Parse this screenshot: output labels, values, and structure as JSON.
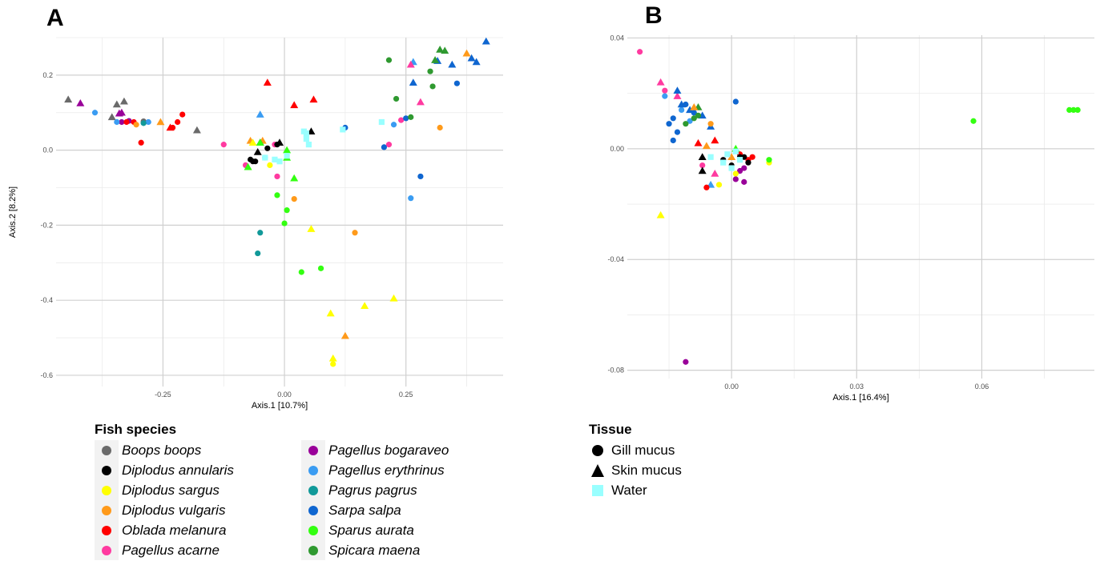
{
  "panels": [
    {
      "letter": "A",
      "xlabel": "Axis.1   [10.7%]",
      "ylabel": "Axis.2   [8.2%]",
      "xlim": [
        -0.47,
        0.45
      ],
      "ylim": [
        -0.63,
        0.3
      ],
      "xticks": [
        -0.25,
        0.0,
        0.25
      ],
      "yticks": [
        -0.6,
        -0.4,
        -0.2,
        0.0,
        0.2
      ],
      "xtick_labels": [
        "-0.25",
        "0.00",
        "0.25"
      ],
      "ytick_labels": [
        "-0.6",
        "-0.4",
        "-0.2",
        "0.0",
        "0.2"
      ]
    },
    {
      "letter": "B",
      "xlabel": "Axis.1   [16.4%]",
      "ylabel": "",
      "xlim": [
        -0.025,
        0.087
      ],
      "ylim": [
        -0.083,
        0.041
      ],
      "xticks": [
        0.0,
        0.03,
        0.06
      ],
      "yticks": [
        -0.08,
        -0.04,
        0.0,
        0.04
      ],
      "xtick_labels": [
        "0.00",
        "0.03",
        "0.06"
      ],
      "ytick_labels": [
        "-0.08",
        "-0.04",
        "0.00",
        "0.04"
      ]
    }
  ],
  "legend_species": {
    "title": "Fish species",
    "columns": [
      [
        {
          "label": "Boops boops",
          "color": "#6a6a6a"
        },
        {
          "label": "Diplodus annularis",
          "color": "#000000"
        },
        {
          "label": "Diplodus sargus",
          "color": "#ffff00"
        },
        {
          "label": "Diplodus vulgaris",
          "color": "#ff9a1a"
        },
        {
          "label": "Oblada melanura",
          "color": "#ff0000"
        },
        {
          "label": "Pagellus acarne",
          "color": "#ff3aa0"
        }
      ],
      [
        {
          "label": "Pagellus bogaraveo",
          "color": "#990099"
        },
        {
          "label": "Pagellus erythrinus",
          "color": "#3a9cf2"
        },
        {
          "label": "Pagrus pagrus",
          "color": "#119999"
        },
        {
          "label": "Sarpa salpa",
          "color": "#0f66d0"
        },
        {
          "label": "Sparus aurata",
          "color": "#33ff11"
        },
        {
          "label": "Spicara maena",
          "color": "#2f9930"
        }
      ]
    ]
  },
  "legend_tissue": {
    "title": "Tissue",
    "items": [
      {
        "label": "Gill mucus",
        "shape": "circle"
      },
      {
        "label": "Skin mucus",
        "shape": "triangle"
      },
      {
        "label": "Water",
        "shape": "square"
      }
    ]
  },
  "chart_data": [
    {
      "type": "scatter",
      "title": "A",
      "xlabel": "Axis.1   [10.7%]",
      "ylabel": "Axis.2   [8.2%]",
      "xlim": [
        -0.47,
        0.45
      ],
      "ylim": [
        -0.63,
        0.3
      ],
      "grid": true,
      "points": [
        [
          "BB",
          "s",
          -0.445,
          0.135
        ],
        [
          "BB",
          "s",
          -0.345,
          0.122
        ],
        [
          "BB",
          "s",
          -0.33,
          0.13
        ],
        [
          "BB",
          "s",
          -0.355,
          0.088
        ],
        [
          "BB",
          "g",
          -0.29,
          0.073
        ],
        [
          "BB",
          "s",
          -0.18,
          0.053
        ],
        [
          "BB",
          "g",
          -0.29,
          0.077
        ],
        [
          "PB",
          "s",
          -0.42,
          0.125
        ],
        [
          "PB",
          "s",
          -0.335,
          0.1
        ],
        [
          "PB",
          "s",
          -0.34,
          0.098
        ],
        [
          "PB",
          "g",
          -0.32,
          0.078
        ],
        [
          "PB",
          "g",
          -0.335,
          0.075
        ],
        [
          "PE",
          "g",
          -0.39,
          0.1
        ],
        [
          "PE",
          "g",
          -0.345,
          0.075
        ],
        [
          "PE",
          "g",
          -0.28,
          0.075
        ],
        [
          "PE",
          "s",
          -0.05,
          0.095
        ],
        [
          "PE",
          "s",
          0.265,
          0.235
        ],
        [
          "PE",
          "g",
          0.225,
          0.068
        ],
        [
          "PE",
          "g",
          0.26,
          -0.128
        ],
        [
          "PE",
          "g",
          -0.04,
          -0.02
        ],
        [
          "OM",
          "g",
          -0.325,
          0.075
        ],
        [
          "OM",
          "g",
          -0.31,
          0.075
        ],
        [
          "OM",
          "g",
          -0.295,
          0.02
        ],
        [
          "OM",
          "g",
          -0.23,
          0.06
        ],
        [
          "OM",
          "g",
          -0.22,
          0.075
        ],
        [
          "OM",
          "g",
          -0.21,
          0.095
        ],
        [
          "OM",
          "s",
          -0.235,
          0.06
        ],
        [
          "OM",
          "s",
          -0.035,
          0.18
        ],
        [
          "OM",
          "s",
          0.02,
          0.12
        ],
        [
          "OM",
          "s",
          0.06,
          0.135
        ],
        [
          "DV",
          "g",
          -0.305,
          0.068
        ],
        [
          "DV",
          "s",
          -0.255,
          0.075
        ],
        [
          "DV",
          "s",
          -0.07,
          0.025
        ],
        [
          "DV",
          "s",
          -0.045,
          0.025
        ],
        [
          "DV",
          "g",
          0.02,
          -0.13
        ],
        [
          "DV",
          "g",
          0.145,
          -0.22
        ],
        [
          "DV",
          "s",
          0.125,
          -0.495
        ],
        [
          "DV",
          "s",
          0.375,
          0.258
        ],
        [
          "DV",
          "g",
          0.32,
          0.06
        ],
        [
          "PP",
          "g",
          -0.05,
          -0.22
        ],
        [
          "PP",
          "g",
          -0.055,
          -0.275
        ],
        [
          "PP",
          "g",
          -0.29,
          0.072
        ],
        [
          "PA",
          "g",
          -0.125,
          0.015
        ],
        [
          "PA",
          "g",
          -0.08,
          -0.04
        ],
        [
          "PA",
          "g",
          -0.015,
          -0.07
        ],
        [
          "PA",
          "g",
          0.215,
          0.015
        ],
        [
          "PA",
          "g",
          0.24,
          0.08
        ],
        [
          "PA",
          "s",
          0.26,
          0.228
        ],
        [
          "PA",
          "s",
          0.28,
          0.128
        ],
        [
          "PA",
          "g",
          -0.02,
          0.015
        ],
        [
          "DA",
          "g",
          -0.07,
          -0.025
        ],
        [
          "DA",
          "g",
          -0.065,
          -0.03
        ],
        [
          "DA",
          "g",
          -0.06,
          -0.03
        ],
        [
          "DA",
          "s",
          -0.055,
          -0.005
        ],
        [
          "DA",
          "s",
          -0.05,
          0.02
        ],
        [
          "DA",
          "g",
          -0.035,
          0.005
        ],
        [
          "DA",
          "g",
          -0.015,
          0.015
        ],
        [
          "DA",
          "s",
          -0.01,
          0.02
        ],
        [
          "DA",
          "s",
          0.055,
          0.05
        ],
        [
          "DS",
          "s",
          -0.065,
          0.02
        ],
        [
          "DS",
          "g",
          -0.03,
          -0.04
        ],
        [
          "DS",
          "s",
          0.055,
          -0.21
        ],
        [
          "DS",
          "s",
          0.095,
          -0.435
        ],
        [
          "DS",
          "s",
          0.1,
          -0.555
        ],
        [
          "DS",
          "g",
          0.1,
          -0.57
        ],
        [
          "DS",
          "s",
          0.165,
          -0.415
        ],
        [
          "DS",
          "s",
          0.225,
          -0.395
        ],
        [
          "SA",
          "s",
          -0.075,
          -0.045
        ],
        [
          "SA",
          "s",
          -0.05,
          0.02
        ],
        [
          "SA",
          "s",
          0.005,
          0.0
        ],
        [
          "SA",
          "s",
          0.005,
          -0.02
        ],
        [
          "SA",
          "s",
          0.02,
          -0.075
        ],
        [
          "SA",
          "g",
          -0.015,
          -0.12
        ],
        [
          "SA",
          "g",
          0.005,
          -0.16
        ],
        [
          "SA",
          "g",
          0.0,
          -0.195
        ],
        [
          "SA",
          "g",
          0.035,
          -0.325
        ],
        [
          "SA",
          "g",
          0.075,
          -0.315
        ],
        [
          "SS",
          "g",
          0.125,
          0.06
        ],
        [
          "SS",
          "g",
          0.205,
          0.008
        ],
        [
          "SS",
          "g",
          0.25,
          0.085
        ],
        [
          "SS",
          "s",
          0.265,
          0.18
        ],
        [
          "SS",
          "g",
          0.28,
          -0.07
        ],
        [
          "SS",
          "s",
          0.315,
          0.238
        ],
        [
          "SS",
          "s",
          0.345,
          0.228
        ],
        [
          "SS",
          "g",
          0.355,
          0.178
        ],
        [
          "SS",
          "s",
          0.385,
          0.245
        ],
        [
          "SS",
          "s",
          0.395,
          0.235
        ],
        [
          "SS",
          "s",
          0.415,
          0.29
        ],
        [
          "SM",
          "g",
          0.215,
          0.24
        ],
        [
          "SM",
          "g",
          0.23,
          0.137
        ],
        [
          "SM",
          "g",
          0.26,
          0.088
        ],
        [
          "SM",
          "g",
          0.3,
          0.21
        ],
        [
          "SM",
          "s",
          0.31,
          0.24
        ],
        [
          "SM",
          "g",
          0.305,
          0.17
        ],
        [
          "SM",
          "s",
          0.32,
          0.268
        ],
        [
          "SM",
          "s",
          0.33,
          0.265
        ],
        [
          "W",
          "w",
          -0.04,
          -0.02
        ],
        [
          "W",
          "w",
          -0.02,
          -0.025
        ],
        [
          "W",
          "w",
          -0.01,
          -0.03
        ],
        [
          "W",
          "w",
          0.005,
          -0.015
        ],
        [
          "W",
          "w",
          0.04,
          0.05
        ],
        [
          "W",
          "w",
          0.045,
          0.03
        ],
        [
          "W",
          "w",
          0.05,
          0.015
        ],
        [
          "W",
          "w",
          0.045,
          0.045
        ],
        [
          "W",
          "w",
          0.12,
          0.055
        ],
        [
          "W",
          "w",
          0.2,
          0.075
        ]
      ]
    },
    {
      "type": "scatter",
      "title": "B",
      "xlabel": "Axis.1   [16.4%]",
      "ylabel": "",
      "xlim": [
        -0.025,
        0.087
      ],
      "ylim": [
        -0.083,
        0.041
      ],
      "grid": true,
      "points": [
        [
          "PA",
          "g",
          -0.022,
          0.035
        ],
        [
          "PA",
          "s",
          -0.017,
          0.024
        ],
        [
          "PA",
          "g",
          -0.016,
          0.021
        ],
        [
          "PA",
          "s",
          -0.013,
          0.019
        ],
        [
          "PA",
          "s",
          -0.004,
          -0.009
        ],
        [
          "PA",
          "g",
          -0.007,
          -0.006
        ],
        [
          "PE",
          "g",
          -0.016,
          0.019
        ],
        [
          "PE",
          "g",
          -0.012,
          0.014
        ],
        [
          "PE",
          "s",
          -0.005,
          -0.013
        ],
        [
          "PE",
          "g",
          -0.01,
          0.01
        ],
        [
          "SS",
          "g",
          -0.015,
          0.009
        ],
        [
          "SS",
          "g",
          -0.013,
          0.006
        ],
        [
          "SS",
          "s",
          -0.013,
          0.021
        ],
        [
          "SS",
          "g",
          -0.014,
          0.011
        ],
        [
          "SS",
          "s",
          -0.012,
          0.016
        ],
        [
          "SS",
          "g",
          -0.011,
          0.016
        ],
        [
          "SS",
          "s",
          -0.01,
          0.014
        ],
        [
          "SS",
          "g",
          -0.009,
          0.013
        ],
        [
          "SS",
          "s",
          -0.007,
          0.012
        ],
        [
          "SS",
          "g",
          0.001,
          0.017
        ],
        [
          "SS",
          "s",
          -0.005,
          0.008
        ],
        [
          "SS",
          "g",
          -0.014,
          0.003
        ],
        [
          "SM",
          "g",
          -0.011,
          0.009
        ],
        [
          "SM",
          "g",
          -0.009,
          0.011
        ],
        [
          "SM",
          "g",
          -0.008,
          0.012
        ],
        [
          "SM",
          "s",
          -0.008,
          0.015
        ],
        [
          "DV",
          "s",
          -0.009,
          0.015
        ],
        [
          "DV",
          "g",
          -0.005,
          0.009
        ],
        [
          "DV",
          "s",
          -0.006,
          0.001
        ],
        [
          "DV",
          "s",
          0.0,
          -0.003
        ],
        [
          "OM",
          "s",
          -0.008,
          0.002
        ],
        [
          "OM",
          "s",
          -0.004,
          0.003
        ],
        [
          "OM",
          "g",
          -0.006,
          -0.014
        ],
        [
          "OM",
          "g",
          0.002,
          -0.002
        ],
        [
          "OM",
          "g",
          0.004,
          -0.004
        ],
        [
          "OM",
          "g",
          0.005,
          -0.003
        ],
        [
          "DA",
          "s",
          -0.007,
          -0.008
        ],
        [
          "DA",
          "s",
          -0.007,
          -0.003
        ],
        [
          "DA",
          "g",
          -0.002,
          -0.004
        ],
        [
          "DA",
          "g",
          0.0,
          -0.006
        ],
        [
          "DA",
          "g",
          0.002,
          -0.003
        ],
        [
          "DA",
          "g",
          0.003,
          -0.003
        ],
        [
          "DA",
          "g",
          0.004,
          -0.005
        ],
        [
          "PB",
          "g",
          -0.011,
          -0.077
        ],
        [
          "PB",
          "g",
          0.002,
          -0.008
        ],
        [
          "PB",
          "g",
          0.003,
          -0.007
        ],
        [
          "PB",
          "g",
          0.003,
          -0.012
        ],
        [
          "PB",
          "g",
          0.001,
          -0.011
        ],
        [
          "DS",
          "s",
          -0.017,
          -0.024
        ],
        [
          "DS",
          "g",
          -0.003,
          -0.013
        ],
        [
          "DS",
          "g",
          0.009,
          -0.005
        ],
        [
          "DS",
          "g",
          0.001,
          -0.009
        ],
        [
          "SA",
          "g",
          0.009,
          -0.004
        ],
        [
          "SA",
          "g",
          0.058,
          0.01
        ],
        [
          "SA",
          "g",
          0.081,
          0.014
        ],
        [
          "SA",
          "g",
          0.082,
          0.014
        ],
        [
          "SA",
          "g",
          0.083,
          0.014
        ],
        [
          "SA",
          "s",
          0.001,
          0.0
        ],
        [
          "W",
          "w",
          -0.005,
          -0.003
        ],
        [
          "W",
          "w",
          -0.002,
          -0.005
        ],
        [
          "W",
          "w",
          -0.001,
          -0.002
        ],
        [
          "W",
          "w",
          0.0,
          -0.007
        ],
        [
          "W",
          "w",
          0.001,
          -0.001
        ],
        [
          "W",
          "w",
          0.002,
          -0.004
        ]
      ]
    }
  ]
}
